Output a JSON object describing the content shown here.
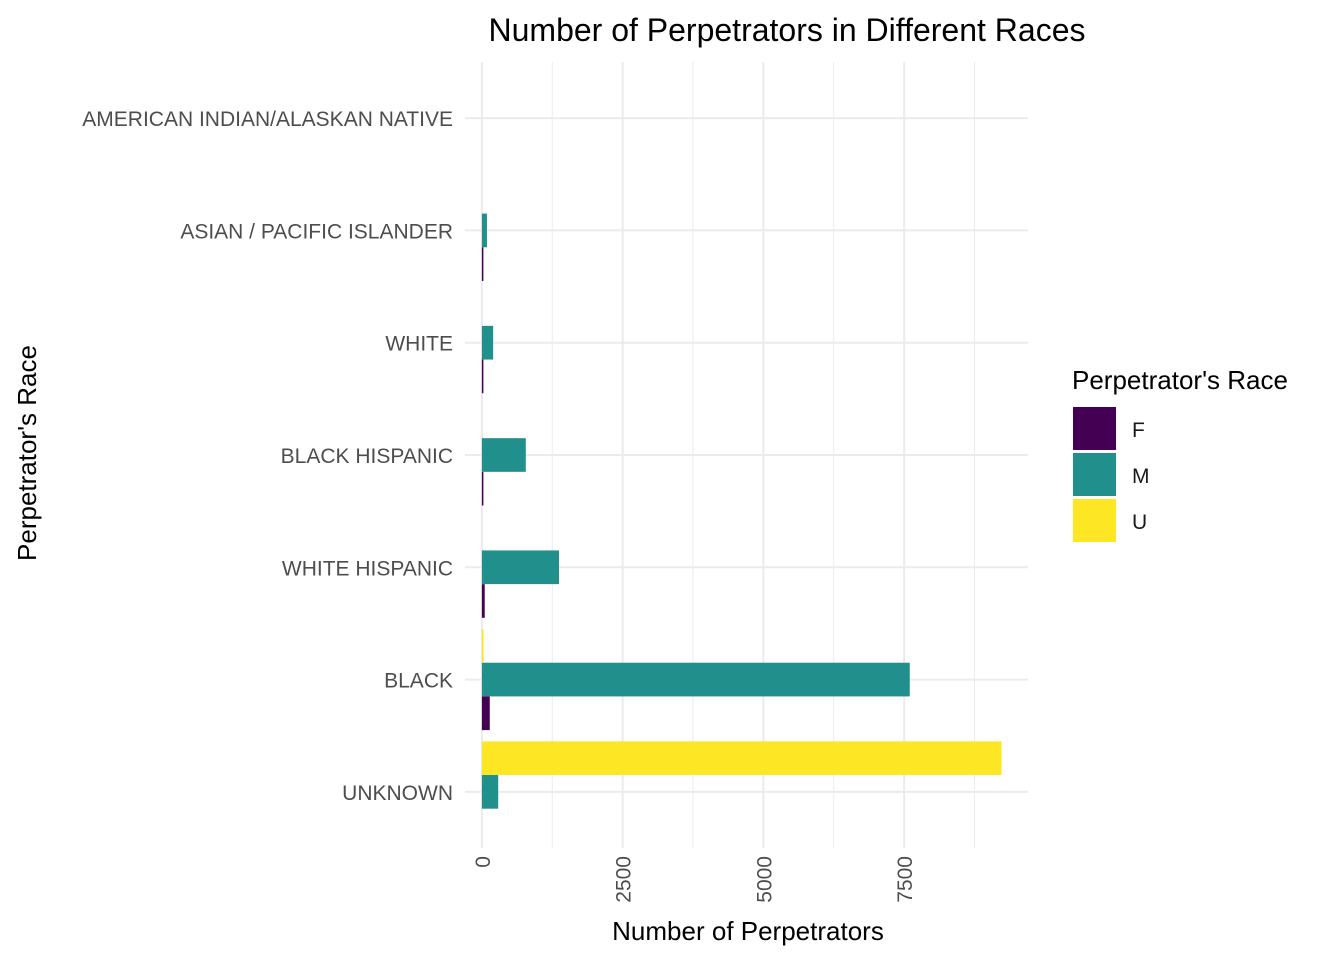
{
  "chart_data": {
    "type": "bar",
    "orientation": "horizontal",
    "title": "Number of Perpetrators in Different Races",
    "xlabel": "Number of Perpetrators",
    "ylabel": "Perpetrator's Race",
    "categories": [
      "AMERICAN INDIAN/ALASKAN NATIVE",
      "ASIAN / PACIFIC ISLANDER",
      "WHITE",
      "BLACK HISPANIC",
      "WHITE HISPANIC",
      "BLACK",
      "UNKNOWN"
    ],
    "series": [
      {
        "name": "F",
        "color": "#440154",
        "values": [
          0,
          3,
          20,
          25,
          50,
          140,
          0
        ]
      },
      {
        "name": "M",
        "color": "#21908C",
        "values": [
          0,
          90,
          200,
          780,
          1370,
          7600,
          290
        ]
      },
      {
        "name": "U",
        "color": "#FDE725",
        "values": [
          0,
          0,
          0,
          0,
          0,
          30,
          9230
        ]
      }
    ],
    "xlim": [
      -300,
      9700
    ],
    "x_ticks": [
      "0",
      "2500",
      "5000",
      "7500"
    ],
    "x_tick_values": [
      0,
      2500,
      5000,
      7500
    ],
    "legend": {
      "title": "Perpetrator's Race",
      "position": "right",
      "entries": [
        "F",
        "M",
        "U"
      ]
    },
    "grid": true
  }
}
